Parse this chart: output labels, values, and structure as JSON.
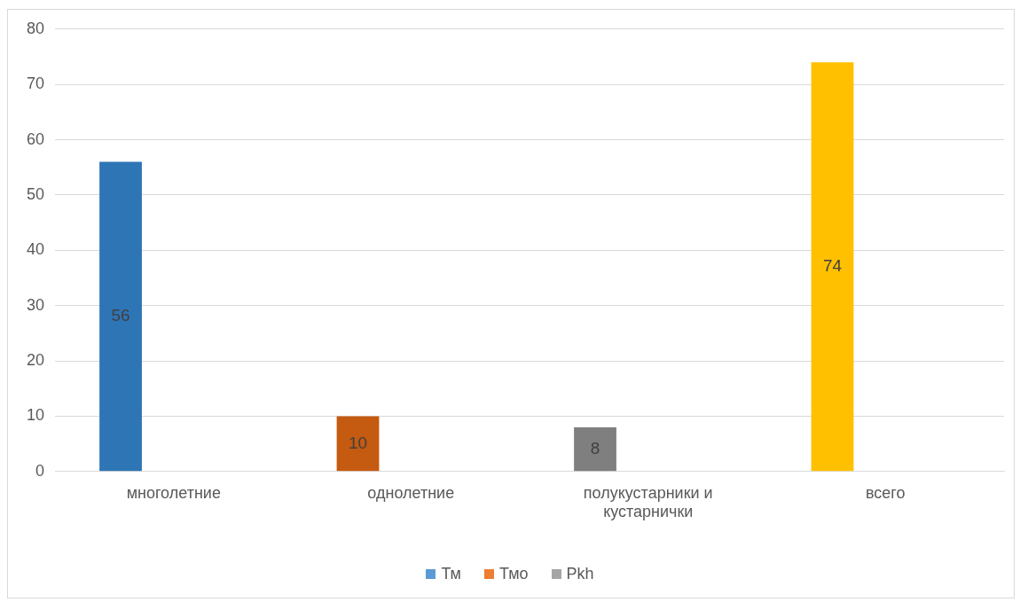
{
  "chart_data": {
    "type": "bar",
    "categories": [
      "многолетние",
      "однолетние",
      "полукустарники и кустарнички",
      "всего"
    ],
    "series": [
      {
        "name": "Тм",
        "color": "#5b9bd5",
        "colors": [
          "#2e75b6",
          "#c55a11",
          "#7f7f7f",
          "#ffc000"
        ],
        "values": [
          56,
          10,
          8,
          74
        ]
      },
      {
        "name": "Тмо",
        "color": "#ed7d31",
        "values": [
          null,
          null,
          null,
          null
        ]
      },
      {
        "name": "Pkh",
        "color": "#a5a5a5",
        "values": [
          null,
          null,
          null,
          null
        ]
      }
    ],
    "ylim": [
      0,
      80
    ],
    "yticks": [
      0,
      10,
      20,
      30,
      40,
      50,
      60,
      70,
      80
    ],
    "grid": "y",
    "legend": "bottom",
    "data_labels": true
  }
}
